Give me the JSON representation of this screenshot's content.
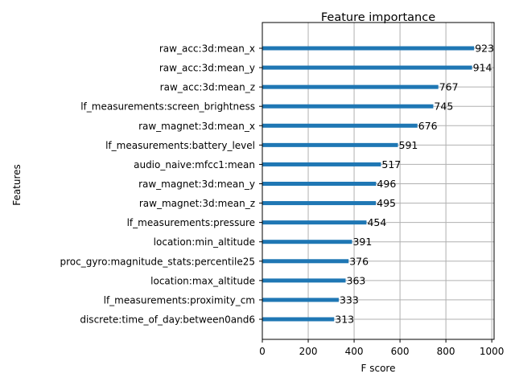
{
  "chart_data": {
    "type": "bar",
    "orientation": "horizontal",
    "title": "Feature importance",
    "xlabel": "F score",
    "ylabel": "Features",
    "xlim": [
      0,
      1010
    ],
    "xticks": [
      0,
      200,
      400,
      600,
      800,
      1000
    ],
    "grid": true,
    "bar_color": "#1f77b4",
    "categories": [
      "raw_acc:3d:mean_x",
      "raw_acc:3d:mean_y",
      "raw_acc:3d:mean_z",
      "lf_measurements:screen_brightness",
      "raw_magnet:3d:mean_x",
      "lf_measurements:battery_level",
      "audio_naive:mfcc1:mean",
      "raw_magnet:3d:mean_y",
      "raw_magnet:3d:mean_z",
      "lf_measurements:pressure",
      "location:min_altitude",
      "proc_gyro:magnitude_stats:percentile25",
      "location:max_altitude",
      "lf_measurements:proximity_cm",
      "discrete:time_of_day:between0and6"
    ],
    "values": [
      923,
      914,
      767,
      745,
      676,
      591,
      517,
      496,
      495,
      454,
      391,
      376,
      363,
      333,
      313
    ]
  }
}
